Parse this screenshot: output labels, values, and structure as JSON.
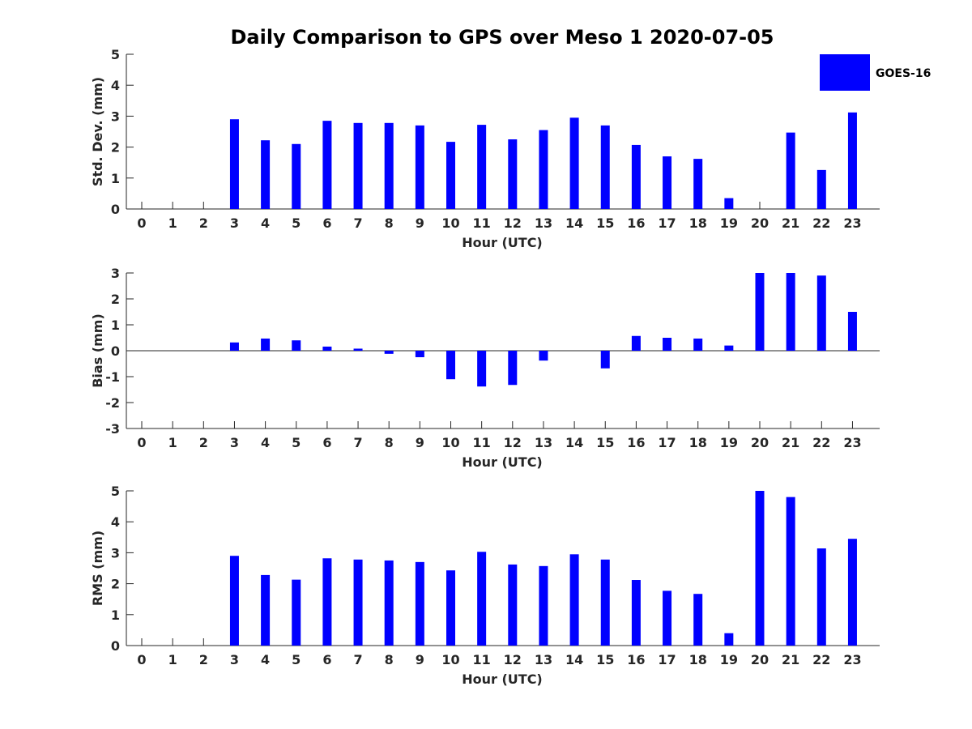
{
  "title": "Daily Comparison to GPS over Meso 1 2020-07-05",
  "legend": {
    "label": "GOES-16",
    "color": "#0000ff",
    "position": "top-right"
  },
  "chart_data": [
    {
      "type": "bar",
      "ylabel": "Std. Dev. (mm)",
      "xlabel": "Hour (UTC)",
      "categories": [
        "0",
        "1",
        "2",
        "3",
        "4",
        "5",
        "6",
        "7",
        "8",
        "9",
        "10",
        "11",
        "12",
        "13",
        "14",
        "15",
        "16",
        "17",
        "18",
        "19",
        "20",
        "21",
        "22",
        "23"
      ],
      "ylim": [
        0,
        5
      ],
      "yticks": [
        0,
        1,
        2,
        3,
        4,
        5
      ],
      "series": [
        {
          "name": "GOES-16",
          "values": [
            null,
            null,
            null,
            2.9,
            2.22,
            2.1,
            2.85,
            2.78,
            2.78,
            2.7,
            2.17,
            2.72,
            2.25,
            2.55,
            2.95,
            2.7,
            2.07,
            1.7,
            1.62,
            0.35,
            null,
            2.47,
            1.26,
            3.12
          ]
        }
      ]
    },
    {
      "type": "bar",
      "ylabel": "Bias (mm)",
      "xlabel": "Hour (UTC)",
      "categories": [
        "0",
        "1",
        "2",
        "3",
        "4",
        "5",
        "6",
        "7",
        "8",
        "9",
        "10",
        "11",
        "12",
        "13",
        "14",
        "15",
        "16",
        "17",
        "18",
        "19",
        "20",
        "21",
        "22",
        "23"
      ],
      "ylim": [
        -3,
        3
      ],
      "yticks": [
        -3,
        -2,
        -1,
        0,
        1,
        2,
        3
      ],
      "zero_line": true,
      "series": [
        {
          "name": "GOES-16",
          "values": [
            null,
            null,
            null,
            0.32,
            0.47,
            0.4,
            0.16,
            0.08,
            -0.12,
            -0.25,
            -1.1,
            -1.38,
            -1.32,
            -0.38,
            null,
            -0.68,
            0.57,
            0.5,
            0.47,
            0.2,
            3.0,
            3.0,
            2.9,
            1.5
          ]
        }
      ]
    },
    {
      "type": "bar",
      "ylabel": "RMS (mm)",
      "xlabel": "Hour (UTC)",
      "categories": [
        "0",
        "1",
        "2",
        "3",
        "4",
        "5",
        "6",
        "7",
        "8",
        "9",
        "10",
        "11",
        "12",
        "13",
        "14",
        "15",
        "16",
        "17",
        "18",
        "19",
        "20",
        "21",
        "22",
        "23"
      ],
      "ylim": [
        0,
        5
      ],
      "yticks": [
        0,
        1,
        2,
        3,
        4,
        5
      ],
      "series": [
        {
          "name": "GOES-16",
          "values": [
            null,
            null,
            null,
            2.9,
            2.28,
            2.13,
            2.82,
            2.78,
            2.75,
            2.7,
            2.43,
            3.03,
            2.62,
            2.57,
            2.95,
            2.78,
            2.12,
            1.77,
            1.67,
            0.4,
            5.0,
            4.8,
            3.14,
            3.45
          ]
        }
      ]
    }
  ]
}
